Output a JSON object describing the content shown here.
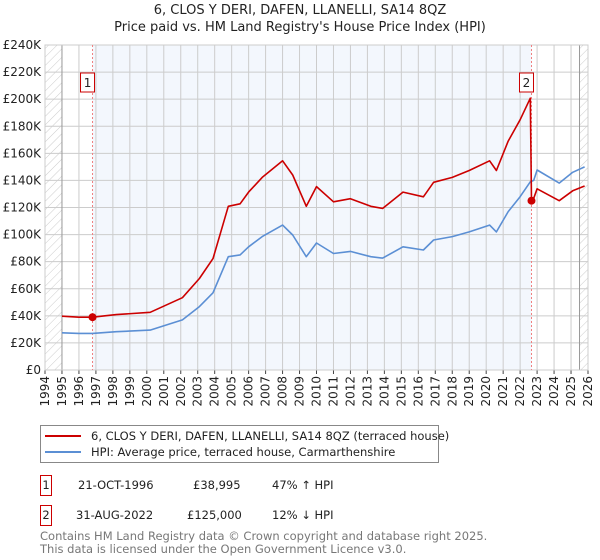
{
  "chart_data": {
    "type": "line",
    "title": "6, CLOS Y DERI, DAFEN, LLANELLI, SA14 8QZ",
    "subtitle": "Price paid vs. HM Land Registry's House Price Index (HPI)",
    "xlim": [
      1994,
      2026
    ],
    "ylim": [
      0,
      240000
    ],
    "grid": true,
    "x_ticks": [
      "1994",
      "1995",
      "1996",
      "1997",
      "1998",
      "1999",
      "2000",
      "2001",
      "2002",
      "2003",
      "2004",
      "2005",
      "2006",
      "2007",
      "2008",
      "2009",
      "2010",
      "2011",
      "2012",
      "2013",
      "2014",
      "2015",
      "2016",
      "2017",
      "2018",
      "2019",
      "2020",
      "2021",
      "2022",
      "2023",
      "2024",
      "2025",
      "2026"
    ],
    "y_ticks": [
      {
        "value": 0,
        "label": "£0"
      },
      {
        "value": 20000,
        "label": "£20K"
      },
      {
        "value": 40000,
        "label": "£40K"
      },
      {
        "value": 60000,
        "label": "£60K"
      },
      {
        "value": 80000,
        "label": "£80K"
      },
      {
        "value": 100000,
        "label": "£100K"
      },
      {
        "value": 120000,
        "label": "£120K"
      },
      {
        "value": 140000,
        "label": "£140K"
      },
      {
        "value": 160000,
        "label": "£160K"
      },
      {
        "value": 180000,
        "label": "£180K"
      },
      {
        "value": 200000,
        "label": "£200K"
      },
      {
        "value": 220000,
        "label": "£220K"
      },
      {
        "value": 240000,
        "label": "£240K"
      }
    ],
    "series": [
      {
        "name": "6, CLOS Y DERI, DAFEN, LLANELLI, SA14 8QZ (terraced house)",
        "color": "#cc0000",
        "x": [
          1995.0,
          1996.0,
          1996.8,
          1998.2,
          2000.2,
          2002.1,
          2003.1,
          2003.9,
          2004.8,
          2005.5,
          2006.0,
          2006.8,
          2008.0,
          2008.6,
          2009.4,
          2010.0,
          2011.0,
          2012.0,
          2013.2,
          2013.9,
          2015.1,
          2016.3,
          2016.9,
          2018.0,
          2019.0,
          2020.2,
          2020.6,
          2021.3,
          2022.0,
          2022.6,
          2022.67,
          2022.8,
          2023.0,
          2024.3,
          2025.1,
          2025.8
        ],
        "values": [
          39700,
          39000,
          39000,
          40900,
          42600,
          53400,
          67600,
          82300,
          120900,
          122700,
          131400,
          142200,
          154500,
          144000,
          120900,
          135400,
          124200,
          126500,
          120900,
          119300,
          131400,
          127900,
          138600,
          142200,
          147300,
          154500,
          147300,
          169000,
          184800,
          200700,
          125000,
          126800,
          133800,
          125000,
          132300,
          135900
        ]
      },
      {
        "name": "HPI: Average price, terraced house, Carmarthenshire",
        "color": "#5b8fd4",
        "x": [
          1995.0,
          1996.0,
          1996.8,
          1998.2,
          2000.2,
          2002.1,
          2003.1,
          2003.9,
          2004.8,
          2005.5,
          2006.0,
          2006.8,
          2008.0,
          2008.6,
          2009.4,
          2010.0,
          2011.0,
          2012.0,
          2013.2,
          2013.9,
          2015.1,
          2016.3,
          2016.9,
          2018.0,
          2019.0,
          2020.2,
          2020.6,
          2021.3,
          2022.0,
          2022.6,
          2022.8,
          2023.0,
          2024.3,
          2025.1,
          2025.8
        ],
        "values": [
          27500,
          27000,
          27000,
          28300,
          29500,
          37000,
          46800,
          57000,
          83700,
          85000,
          91000,
          98500,
          107000,
          99700,
          83700,
          93800,
          86000,
          87600,
          83700,
          82600,
          91000,
          88600,
          96000,
          98500,
          102000,
          107000,
          102000,
          117000,
          128000,
          139000,
          140000,
          147700,
          138000,
          146000,
          150000
        ]
      }
    ],
    "sales": [
      {
        "id": "1",
        "x": 1996.8,
        "value": 38995,
        "date": "21-OCT-1996",
        "price": "£38,995",
        "hpi_diff": "47% ↑ HPI"
      },
      {
        "id": "2",
        "x": 2022.67,
        "value": 125000,
        "date": "31-AUG-2022",
        "price": "£125,000",
        "hpi_diff": "12% ↓ HPI"
      }
    ],
    "legend": "bottom"
  },
  "footer": {
    "line1": "Contains HM Land Registry data © Crown copyright and database right 2025.",
    "line2": "This data is licensed under the Open Government Licence v3.0."
  }
}
